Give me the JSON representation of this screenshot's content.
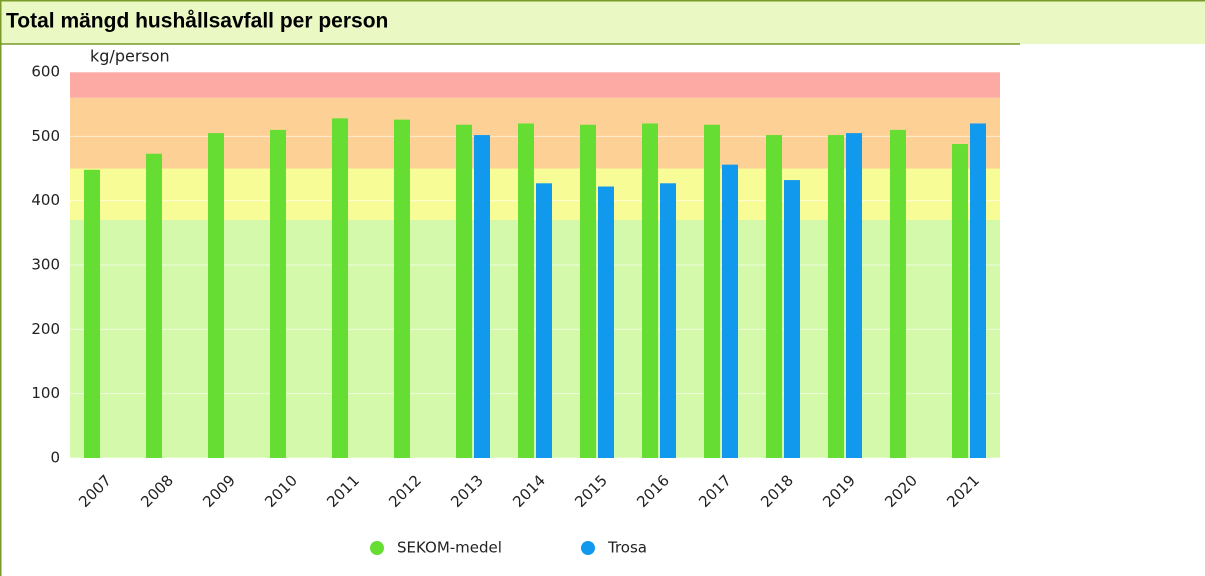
{
  "chart_data": {
    "type": "bar",
    "title": "Total mängd hushållsavfall per person",
    "y_label": "kg/person",
    "categories": [
      "2007",
      "2008",
      "2009",
      "2010",
      "2011",
      "2012",
      "2013",
      "2014",
      "2015",
      "2016",
      "2017",
      "2018",
      "2019",
      "2020",
      "2021"
    ],
    "series": [
      {
        "name": "SEKOM-medel",
        "color": "#66dd33",
        "values": [
          448,
          473,
          505,
          510,
          528,
          526,
          518,
          520,
          518,
          520,
          518,
          502,
          502,
          510,
          488
        ]
      },
      {
        "name": "Trosa",
        "color": "#1199ee",
        "values": [
          null,
          null,
          null,
          null,
          null,
          null,
          502,
          427,
          422,
          427,
          456,
          432,
          505,
          null,
          520
        ]
      }
    ],
    "bands": [
      {
        "from": 0,
        "to": 370,
        "color": "#d4f9ab"
      },
      {
        "from": 370,
        "to": 450,
        "color": "#f7fc96"
      },
      {
        "from": 450,
        "to": 560,
        "color": "#fdd196"
      },
      {
        "from": 560,
        "to": 600,
        "color": "#fdaaa5"
      }
    ],
    "ylim": [
      0,
      600
    ],
    "yticks": [
      0,
      100,
      200,
      300,
      400,
      500,
      600
    ],
    "grid": true,
    "legend": "bottom"
  }
}
